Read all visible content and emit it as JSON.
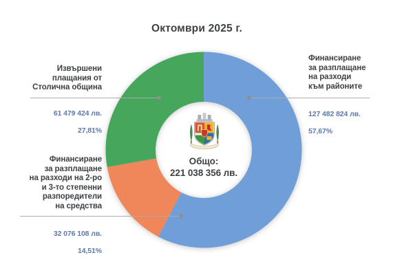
{
  "title": "Октомври  2025 г.",
  "icons": {
    "center_emblem": "sofia-coat-of-arms"
  },
  "chart_data": {
    "type": "pie",
    "subtype": "donut",
    "title": "Октомври  2025 г.",
    "legend_position": "callouts-with-leader-lines",
    "center": {
      "label": "Общо:",
      "value": "221 038 356 лв."
    },
    "slices": [
      {
        "key": "districts",
        "label_lines": [
          "Финансиране",
          "за разплащане",
          "на разходи",
          "към районите"
        ],
        "amount": "127 482 824 лв.",
        "percent_label": "57,67%",
        "percent": 57.67,
        "color": "#6f9ed8"
      },
      {
        "key": "secondary-spenders",
        "label_lines": [
          "Финансиране",
          "за разплащане",
          "на разходи на 2-ро",
          "и 3-то степенни",
          "разпоредители",
          "на средства"
        ],
        "amount": "32 076 108 лв.",
        "percent_label": "14,51%",
        "percent": 14.51,
        "color": "#f0875a"
      },
      {
        "key": "municipality-payments",
        "label_lines": [
          "Извършени",
          "плащания от",
          "Столична община"
        ],
        "amount": "61 479 424 лв.",
        "percent_label": "27,81%",
        "percent": 27.81,
        "color": "#45a65c"
      }
    ],
    "value_text_color": "#5b79ae",
    "label_text_color": "#3e4144"
  }
}
